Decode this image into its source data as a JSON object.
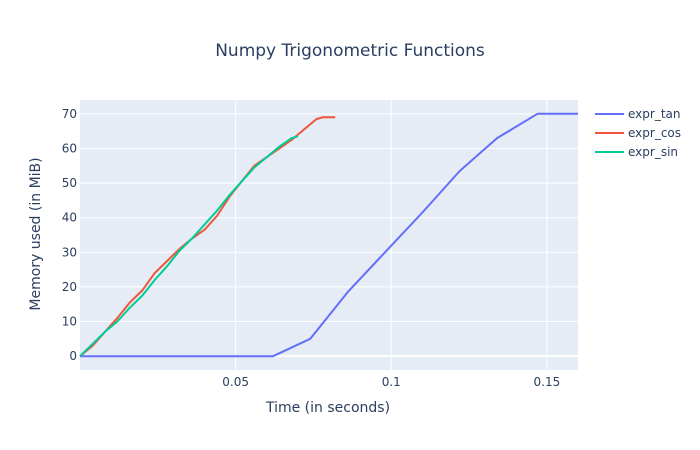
{
  "chart_data": {
    "type": "line",
    "title": "Numpy Trigonometric Functions",
    "xlabel": "Time (in seconds)",
    "ylabel": "Memory used (in MiB)",
    "xlim": [
      0,
      0.16
    ],
    "ylim": [
      -4,
      74
    ],
    "xticks": [
      0.05,
      0.1,
      0.15
    ],
    "xtick_labels": [
      "0.05",
      "0.1",
      "0.15"
    ],
    "yticks": [
      0,
      10,
      20,
      30,
      40,
      50,
      60,
      70
    ],
    "ytick_labels": [
      "0",
      "10",
      "20",
      "30",
      "40",
      "50",
      "60",
      "70"
    ],
    "grid": true,
    "legend_position": "right",
    "plot_bgcolor": "#e5ecf6",
    "series": [
      {
        "name": "expr_tan",
        "color": "#636efa",
        "x": [
          0,
          0.062,
          0.074,
          0.086,
          0.098,
          0.11,
          0.122,
          0.134,
          0.147,
          0.16
        ],
        "y": [
          0,
          0,
          5,
          18.5,
          30,
          41.5,
          53.5,
          63,
          70,
          70
        ]
      },
      {
        "name": "expr_cos",
        "color": "#ef553b",
        "x": [
          0,
          0.004,
          0.008,
          0.012,
          0.016,
          0.02,
          0.024,
          0.028,
          0.032,
          0.036,
          0.04,
          0.044,
          0.048,
          0.052,
          0.056,
          0.06,
          0.064,
          0.068,
          0.072,
          0.076,
          0.078,
          0.08,
          0.082
        ],
        "y": [
          0,
          3,
          7,
          11,
          15.5,
          19,
          24,
          27.5,
          31,
          34,
          36.5,
          40.5,
          46,
          50.5,
          55,
          57.5,
          60,
          62.5,
          65.5,
          68.5,
          69,
          69,
          69
        ]
      },
      {
        "name": "expr_sin",
        "color": "#00cc96",
        "x": [
          0,
          0.004,
          0.008,
          0.012,
          0.016,
          0.02,
          0.024,
          0.028,
          0.032,
          0.036,
          0.04,
          0.044,
          0.048,
          0.052,
          0.056,
          0.06,
          0.064,
          0.068,
          0.07
        ],
        "y": [
          0,
          3.5,
          7,
          10,
          14,
          17.5,
          22,
          26,
          30.5,
          34,
          38,
          42,
          46.5,
          50.5,
          54.5,
          57.5,
          60.5,
          63,
          63.5
        ]
      }
    ]
  }
}
